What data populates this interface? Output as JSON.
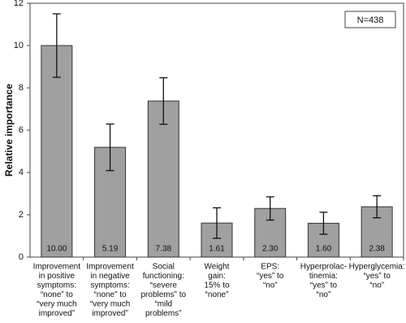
{
  "chart_data": {
    "type": "bar",
    "y_label": "Relative importance",
    "annotation": "N=438",
    "categories": [
      [
        "Improvement",
        "in positive",
        "symptoms:",
        "“none” to",
        "“very much",
        "improved”"
      ],
      [
        "Improvement",
        "in negative",
        "symptoms:",
        "“none” to",
        "“very much",
        "improved”"
      ],
      [
        "Social",
        "functioning:",
        "“severe",
        "problems” to",
        "“mild",
        "problems”"
      ],
      [
        "Weight",
        "gain:",
        "15% to",
        "“none”"
      ],
      [
        "EPS:",
        "“yes” to",
        "“no”"
      ],
      [
        "Hyperprolac-",
        "tinemia:",
        "“yes” to",
        "“no”"
      ],
      [
        "Hyperglycemia:",
        "“yes” to",
        "“no”"
      ]
    ],
    "values": [
      10.0,
      5.19,
      7.38,
      1.61,
      2.3,
      1.6,
      2.38
    ],
    "value_labels": [
      "10.00",
      "5.19",
      "7.38",
      "1.61",
      "2.30",
      "1.60",
      "2.38"
    ],
    "errors": [
      1.5,
      1.1,
      1.1,
      0.72,
      0.55,
      0.52,
      0.52
    ],
    "color": "#a0a0a0",
    "ylim": [
      0,
      12
    ],
    "yticks": [
      0,
      2,
      4,
      6,
      8,
      10,
      12
    ]
  }
}
